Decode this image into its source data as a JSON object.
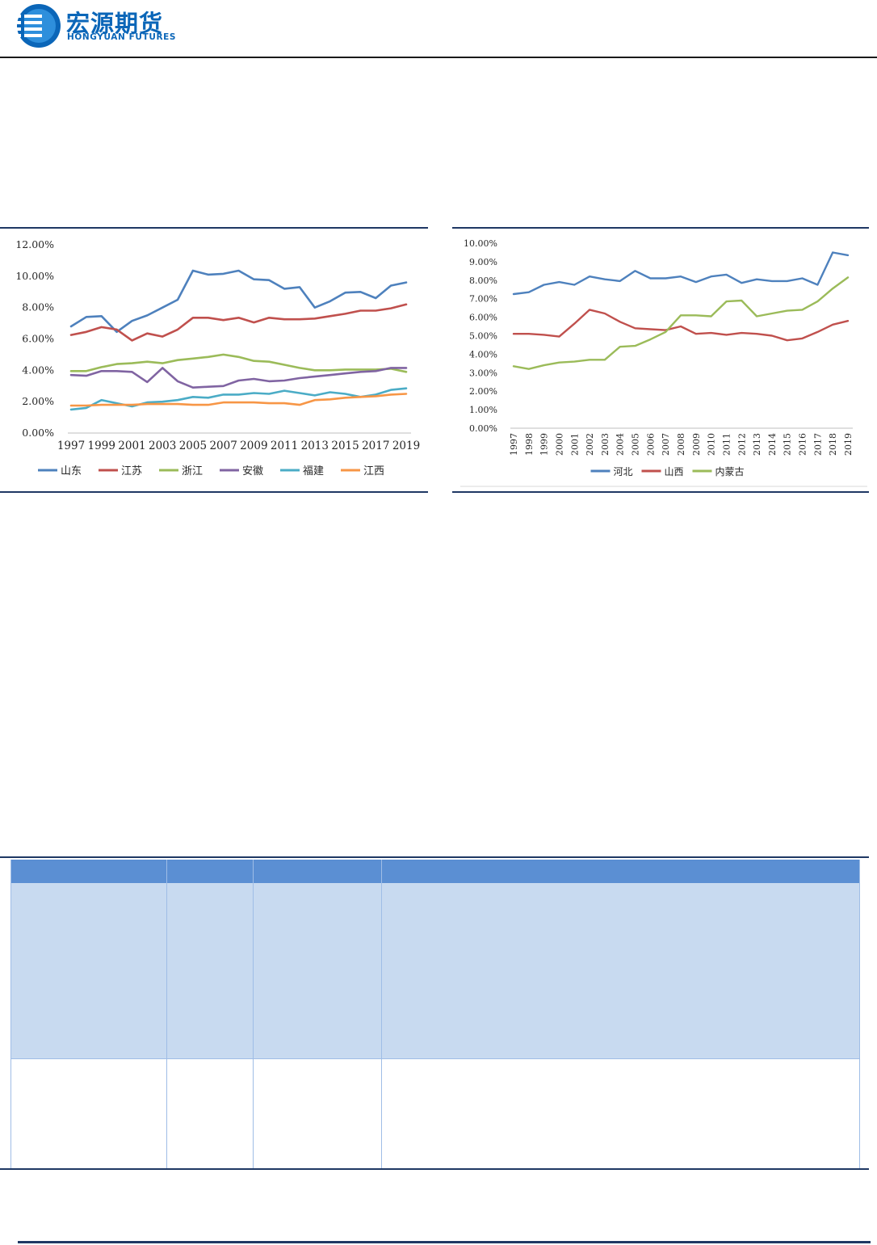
{
  "brand": {
    "name_cn": "宏源期货",
    "name_en": "HONGYUAN FUTURES",
    "colors": {
      "primary": "#0b66b8",
      "rule": "#1f3864"
    }
  },
  "chart_data": [
    {
      "type": "line",
      "title": "",
      "xlabel": "",
      "ylabel": "",
      "ylim": [
        0,
        12
      ],
      "y_tick_labels": [
        "0.00%",
        "2.00%",
        "4.00%",
        "6.00%",
        "8.00%",
        "10.00%",
        "12.00%"
      ],
      "x_tick_labels": [
        "1997",
        "1999",
        "2001",
        "2003",
        "2005",
        "2007",
        "2009",
        "2011",
        "2013",
        "2015",
        "2017",
        "2019"
      ],
      "x": [
        1997,
        1998,
        1999,
        2000,
        2001,
        2002,
        2003,
        2004,
        2005,
        2006,
        2007,
        2008,
        2009,
        2010,
        2011,
        2012,
        2013,
        2014,
        2015,
        2016,
        2017,
        2018,
        2019
      ],
      "grid": false,
      "legend": "bottom",
      "series": [
        {
          "name": "山东",
          "color": "#4e81bd",
          "values": [
            6.8,
            7.4,
            7.45,
            6.45,
            7.15,
            7.5,
            8.0,
            8.5,
            10.35,
            10.1,
            10.15,
            10.35,
            9.8,
            9.75,
            9.2,
            9.3,
            8.0,
            8.4,
            8.95,
            9.0,
            8.6,
            9.4,
            9.6
          ]
        },
        {
          "name": "江苏",
          "color": "#c0504d",
          "values": [
            6.25,
            6.45,
            6.75,
            6.6,
            5.9,
            6.35,
            6.15,
            6.6,
            7.35,
            7.35,
            7.2,
            7.35,
            7.05,
            7.35,
            7.25,
            7.25,
            7.3,
            7.45,
            7.6,
            7.8,
            7.8,
            7.95,
            8.2
          ]
        },
        {
          "name": "浙江",
          "color": "#9bbb59",
          "values": [
            3.95,
            3.95,
            4.2,
            4.4,
            4.45,
            4.55,
            4.45,
            4.65,
            4.75,
            4.85,
            5.0,
            4.85,
            4.6,
            4.55,
            4.35,
            4.15,
            4.0,
            4.0,
            4.05,
            4.05,
            4.05,
            4.1,
            3.9
          ]
        },
        {
          "name": "安徽",
          "color": "#8064a2",
          "values": [
            3.7,
            3.65,
            3.95,
            3.95,
            3.9,
            3.25,
            4.15,
            3.3,
            2.9,
            2.95,
            3.0,
            3.35,
            3.45,
            3.3,
            3.35,
            3.5,
            3.6,
            3.7,
            3.8,
            3.9,
            3.95,
            4.15,
            4.15
          ]
        },
        {
          "name": "福建",
          "color": "#4bacc6",
          "values": [
            1.5,
            1.6,
            2.1,
            1.9,
            1.7,
            1.95,
            2.0,
            2.1,
            2.3,
            2.25,
            2.45,
            2.45,
            2.55,
            2.5,
            2.7,
            2.55,
            2.4,
            2.6,
            2.5,
            2.3,
            2.45,
            2.75,
            2.85
          ]
        },
        {
          "name": "江西",
          "color": "#f79646",
          "values": [
            1.75,
            1.75,
            1.8,
            1.8,
            1.8,
            1.85,
            1.85,
            1.85,
            1.8,
            1.8,
            1.95,
            1.95,
            1.95,
            1.9,
            1.9,
            1.8,
            2.1,
            2.15,
            2.25,
            2.3,
            2.35,
            2.45,
            2.5
          ]
        }
      ]
    },
    {
      "type": "line",
      "title": "",
      "xlabel": "",
      "ylabel": "",
      "ylim": [
        0,
        10
      ],
      "y_tick_labels": [
        "0.00%",
        "1.00%",
        "2.00%",
        "3.00%",
        "4.00%",
        "5.00%",
        "6.00%",
        "7.00%",
        "8.00%",
        "9.00%",
        "10.00%"
      ],
      "x_tick_labels": [
        "1997",
        "1998",
        "1999",
        "2000",
        "2001",
        "2002",
        "2003",
        "2004",
        "2005",
        "2006",
        "2007",
        "2008",
        "2009",
        "2010",
        "2011",
        "2012",
        "2013",
        "2014",
        "2015",
        "2016",
        "2017",
        "2018",
        "2019"
      ],
      "x": [
        1997,
        1998,
        1999,
        2000,
        2001,
        2002,
        2003,
        2004,
        2005,
        2006,
        2007,
        2008,
        2009,
        2010,
        2011,
        2012,
        2013,
        2014,
        2015,
        2016,
        2017,
        2018,
        2019
      ],
      "grid": false,
      "legend": "bottom",
      "series": [
        {
          "name": "河北",
          "color": "#4e81bd",
          "values": [
            7.25,
            7.35,
            7.75,
            7.9,
            7.75,
            8.2,
            8.05,
            7.95,
            8.5,
            8.1,
            8.1,
            8.2,
            7.9,
            8.2,
            8.3,
            7.85,
            8.05,
            7.95,
            7.95,
            8.1,
            7.75,
            9.5,
            9.35
          ]
        },
        {
          "name": "山西",
          "color": "#c0504d",
          "values": [
            5.1,
            5.1,
            5.05,
            4.95,
            5.65,
            6.4,
            6.2,
            5.75,
            5.4,
            5.35,
            5.3,
            5.5,
            5.1,
            5.15,
            5.05,
            5.15,
            5.1,
            5.0,
            4.75,
            4.85,
            5.2,
            5.6,
            5.8
          ]
        },
        {
          "name": "内蒙古",
          "color": "#9bbb59",
          "values": [
            3.35,
            3.2,
            3.4,
            3.55,
            3.6,
            3.7,
            3.7,
            4.4,
            4.45,
            4.8,
            5.2,
            6.1,
            6.1,
            6.05,
            6.85,
            6.9,
            6.05,
            6.2,
            6.35,
            6.4,
            6.85,
            7.55,
            8.15
          ]
        }
      ]
    }
  ]
}
